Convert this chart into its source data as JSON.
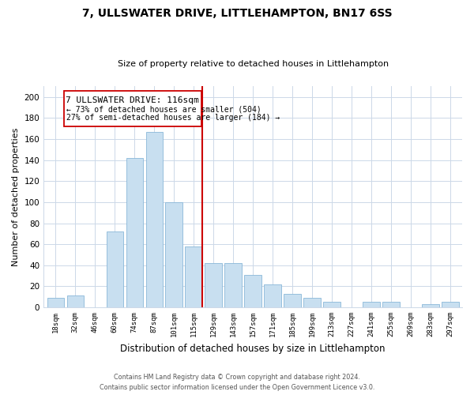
{
  "title": "7, ULLSWATER DRIVE, LITTLEHAMPTON, BN17 6SS",
  "subtitle": "Size of property relative to detached houses in Littlehampton",
  "xlabel": "Distribution of detached houses by size in Littlehampton",
  "ylabel": "Number of detached properties",
  "bar_labels": [
    "18sqm",
    "32sqm",
    "46sqm",
    "60sqm",
    "74sqm",
    "87sqm",
    "101sqm",
    "115sqm",
    "129sqm",
    "143sqm",
    "157sqm",
    "171sqm",
    "185sqm",
    "199sqm",
    "213sqm",
    "227sqm",
    "241sqm",
    "255sqm",
    "269sqm",
    "283sqm",
    "297sqm"
  ],
  "bar_values": [
    9,
    11,
    0,
    72,
    142,
    167,
    100,
    58,
    42,
    42,
    31,
    22,
    13,
    9,
    5,
    0,
    5,
    5,
    0,
    3,
    5
  ],
  "bar_color": "#c8dff0",
  "bar_edge_color": "#8ab8d8",
  "marker_color": "#cc0000",
  "annotation_title": "7 ULLSWATER DRIVE: 116sqm",
  "annotation_line1": "← 73% of detached houses are smaller (504)",
  "annotation_line2": "27% of semi-detached houses are larger (184) →",
  "box_color": "#cc0000",
  "ylim": [
    0,
    210
  ],
  "yticks": [
    0,
    20,
    40,
    60,
    80,
    100,
    120,
    140,
    160,
    180,
    200
  ],
  "footer_line1": "Contains HM Land Registry data © Crown copyright and database right 2024.",
  "footer_line2": "Contains public sector information licensed under the Open Government Licence v3.0.",
  "background_color": "#ffffff",
  "grid_color": "#ccd8e8"
}
